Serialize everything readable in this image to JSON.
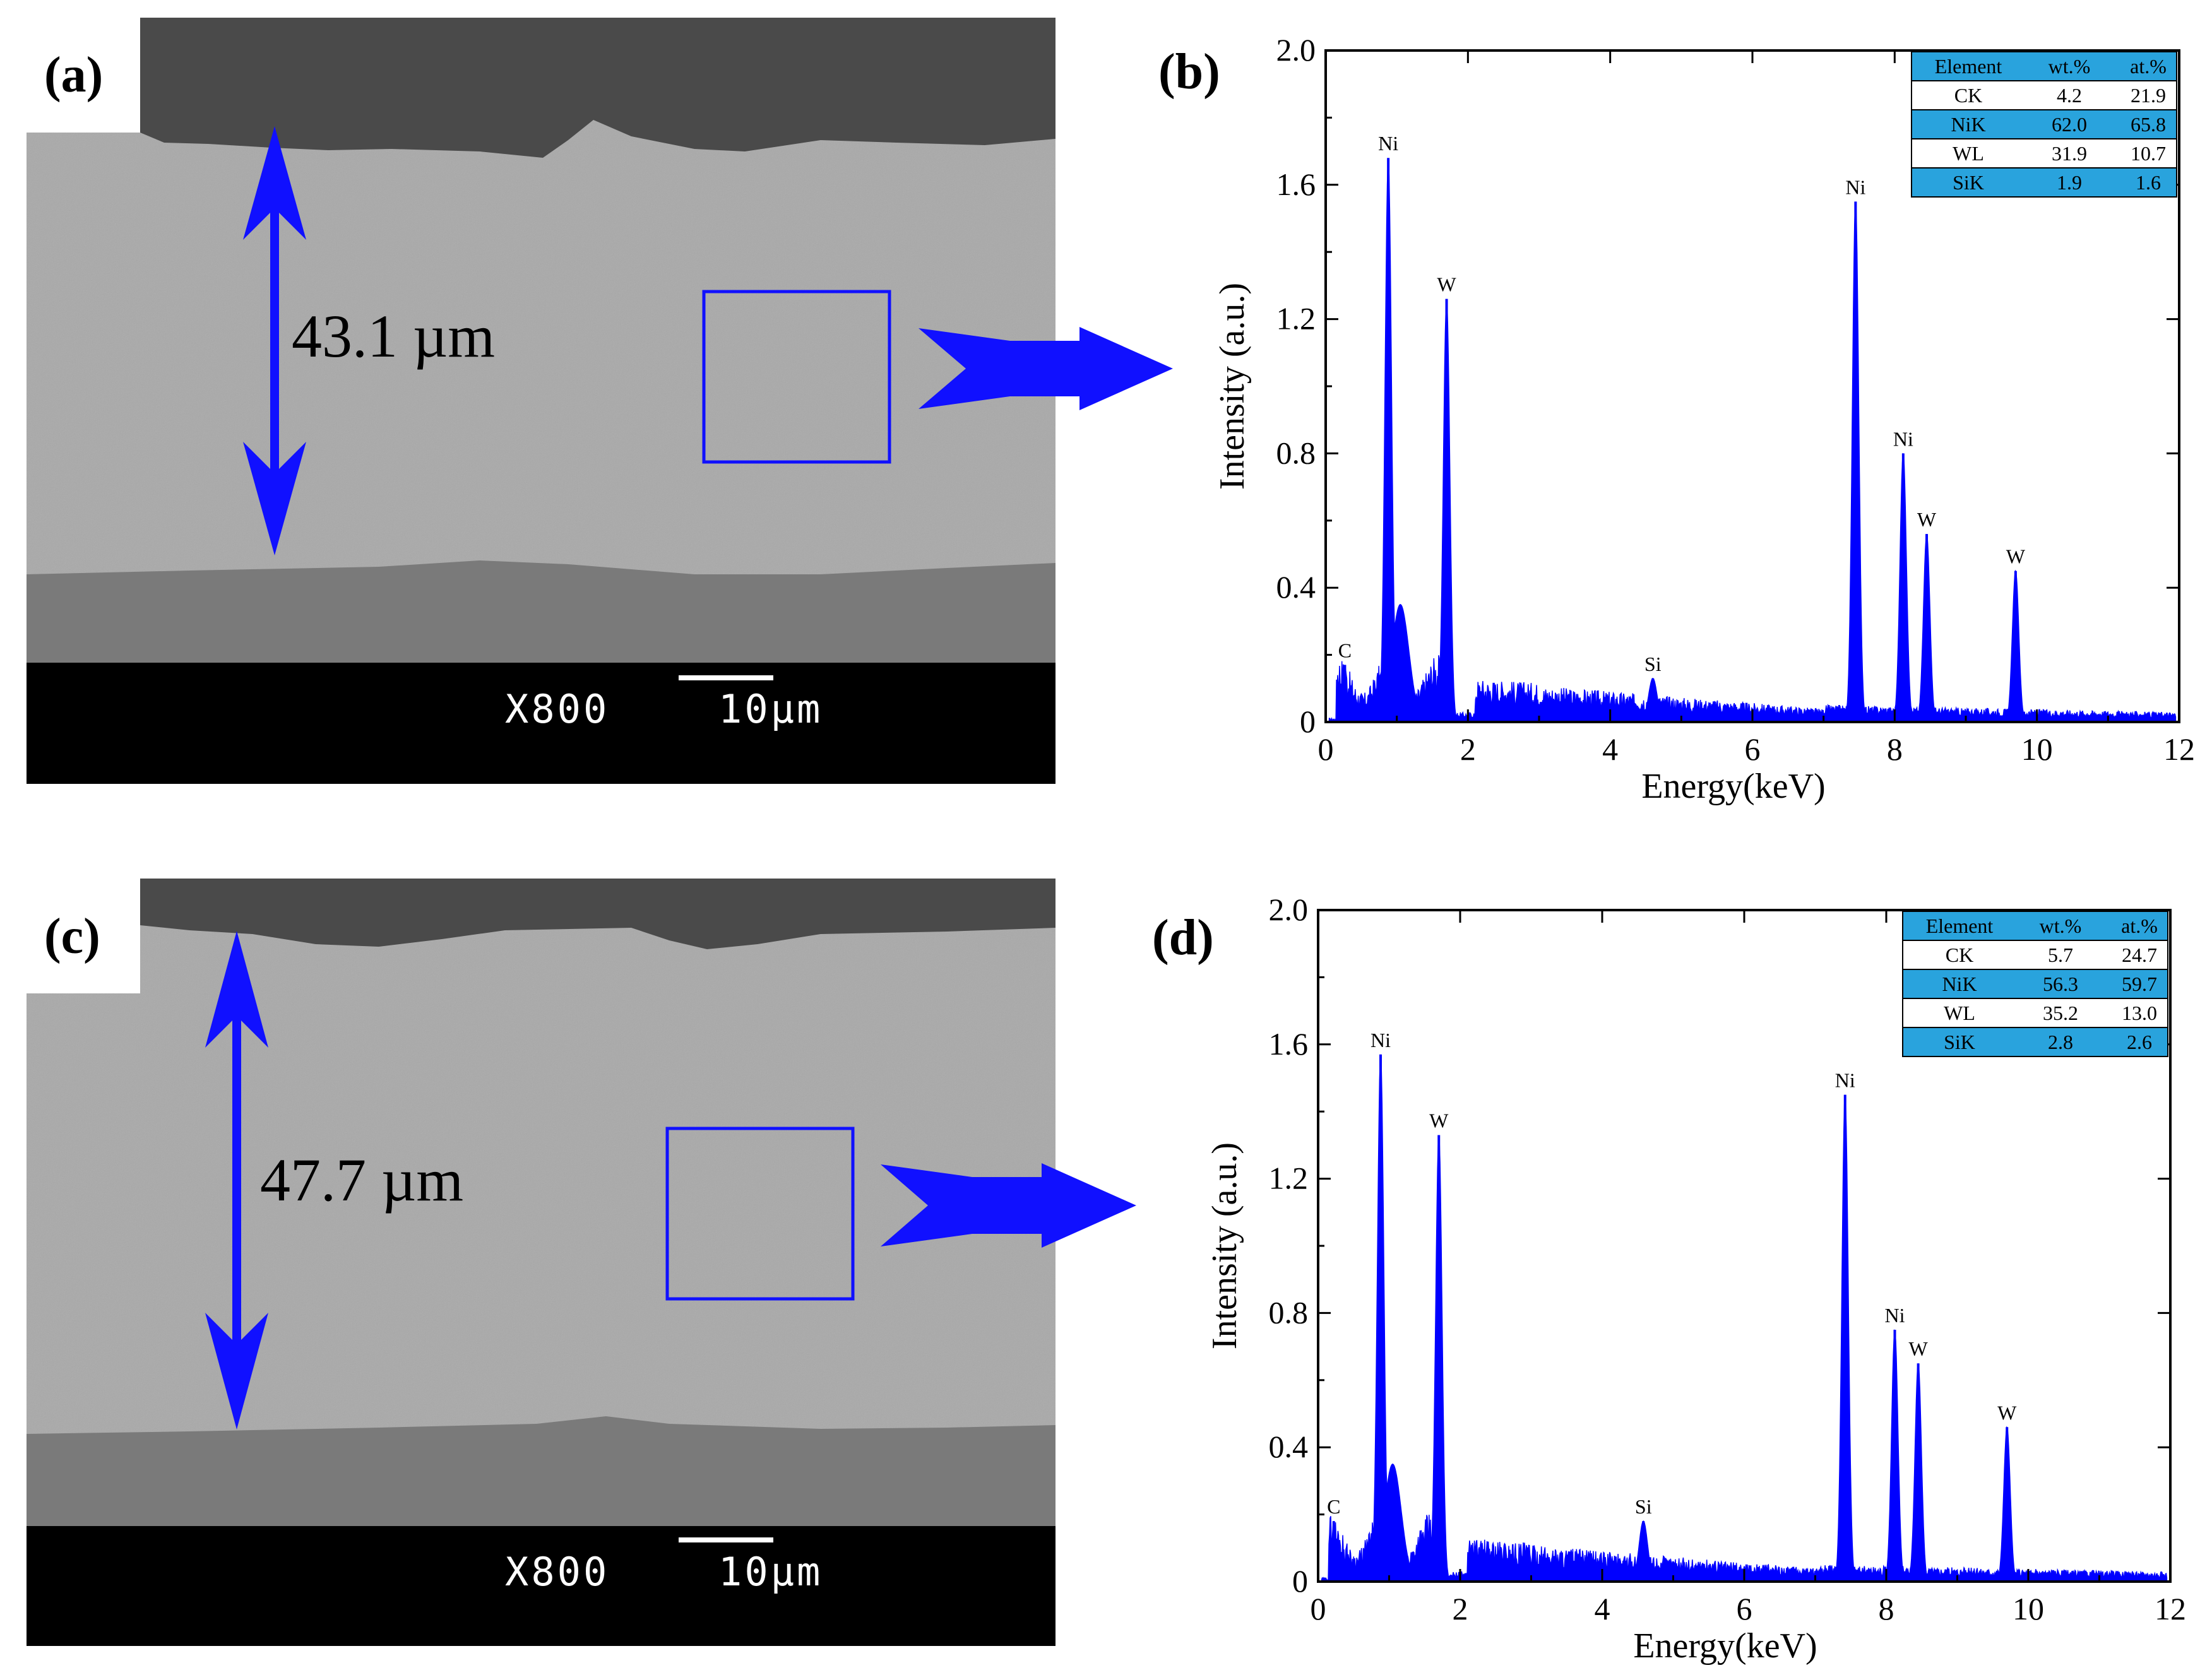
{
  "figure": {
    "panels": {
      "a": {
        "letter": "(a)",
        "thickness": "43.1 µm",
        "magnification": "X800",
        "scalebar": "10µm"
      },
      "b": {
        "letter": "(b)"
      },
      "c": {
        "letter": "(c)",
        "thickness": "47.7 µm",
        "magnification": "X800",
        "scalebar": "10µm"
      },
      "d": {
        "letter": "(d)"
      }
    }
  },
  "colors": {
    "spectrum": "#0000ff",
    "table_highlight": "#29a3dd",
    "sem_bg": "#a9a9a9",
    "sem_top": "#4a4a4a",
    "sem_substrate": "#7a7a7a"
  },
  "chart_data": [
    {
      "type": "area",
      "panel": "b",
      "xlabel": "Energy(keV)",
      "ylabel": "Intensity (a.u.)",
      "xlim": [
        0,
        12
      ],
      "ylim": [
        0,
        2.0
      ],
      "xticks": [
        "0",
        "2",
        "4",
        "6",
        "8",
        "10",
        "12"
      ],
      "yticks": [
        "0",
        "0.4",
        "0.8",
        "1.2",
        "1.6",
        "2.0"
      ],
      "peaks": [
        {
          "x": 0.27,
          "y": 0.17,
          "label": "C"
        },
        {
          "x": 0.88,
          "y": 1.68,
          "label": "Ni"
        },
        {
          "x": 1.7,
          "y": 1.26,
          "label": "W"
        },
        {
          "x": 4.6,
          "y": 0.13,
          "label": "Si"
        },
        {
          "x": 7.45,
          "y": 1.55,
          "label": "Ni"
        },
        {
          "x": 8.12,
          "y": 0.8,
          "label": "Ni"
        },
        {
          "x": 8.45,
          "y": 0.56,
          "label": "W"
        },
        {
          "x": 9.7,
          "y": 0.45,
          "label": "W"
        }
      ],
      "table": {
        "headers": [
          "Element",
          "wt.%",
          "at.%"
        ],
        "rows": [
          [
            "CK",
            "4.2",
            "21.9"
          ],
          [
            "NiK",
            "62.0",
            "65.8"
          ],
          [
            "WL",
            "31.9",
            "10.7"
          ],
          [
            "SiK",
            "1.9",
            "1.6"
          ]
        ]
      }
    },
    {
      "type": "area",
      "panel": "d",
      "xlabel": "Energy(keV)",
      "ylabel": "Intensity (a.u.)",
      "xlim": [
        0,
        12
      ],
      "ylim": [
        0,
        2.0
      ],
      "xticks": [
        "0",
        "2",
        "4",
        "6",
        "8",
        "10",
        "12"
      ],
      "yticks": [
        "0",
        "0.4",
        "0.8",
        "1.2",
        "1.6",
        "2.0"
      ],
      "peaks": [
        {
          "x": 0.22,
          "y": 0.18,
          "label": "C"
        },
        {
          "x": 0.88,
          "y": 1.57,
          "label": "Ni"
        },
        {
          "x": 1.7,
          "y": 1.33,
          "label": "W"
        },
        {
          "x": 4.58,
          "y": 0.18,
          "label": "Si"
        },
        {
          "x": 7.42,
          "y": 1.45,
          "label": "Ni"
        },
        {
          "x": 8.12,
          "y": 0.75,
          "label": "Ni"
        },
        {
          "x": 8.45,
          "y": 0.65,
          "label": "W"
        },
        {
          "x": 9.7,
          "y": 0.46,
          "label": "W"
        }
      ],
      "table": {
        "headers": [
          "Element",
          "wt.%",
          "at.%"
        ],
        "rows": [
          [
            "CK",
            "5.7",
            "24.7"
          ],
          [
            "NiK",
            "56.3",
            "59.7"
          ],
          [
            "WL",
            "35.2",
            "13.0"
          ],
          [
            "SiK",
            "2.8",
            "2.6"
          ]
        ]
      }
    }
  ]
}
